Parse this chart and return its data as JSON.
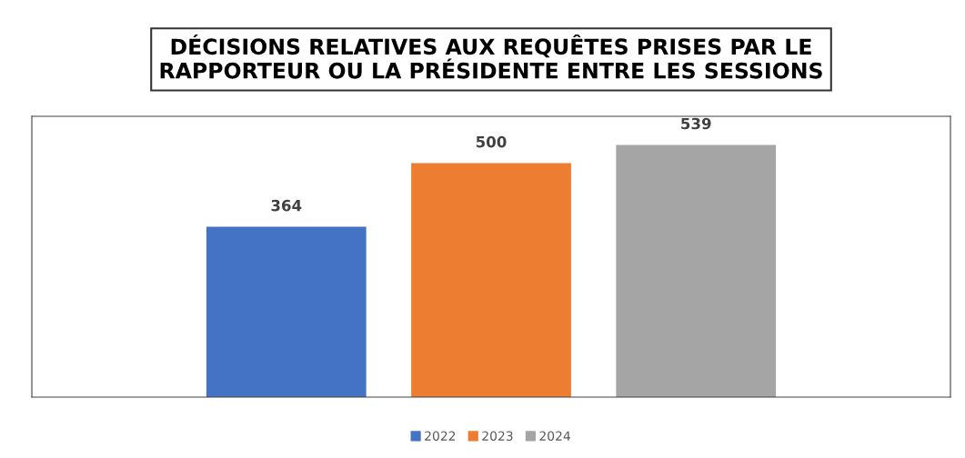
{
  "chart_data": {
    "type": "bar",
    "title": "DÉCISIONS RELATIVES AUX REQUÊTES PRISES PAR LE\nRAPPORTEUR OU LA PRÉSIDENTE ENTRE LES SESSIONS",
    "categories": [
      null
    ],
    "series": [
      {
        "name": "2022",
        "color": "#4472c4",
        "values": [
          364
        ]
      },
      {
        "name": "2023",
        "color": "#ed7d31",
        "values": [
          500
        ]
      },
      {
        "name": "2024",
        "color": "#a5a5a5",
        "values": [
          539
        ]
      }
    ],
    "ylim": [
      0,
      600
    ],
    "data_labels": true,
    "legend": "bottom",
    "grid": false,
    "tick_labels": false
  }
}
